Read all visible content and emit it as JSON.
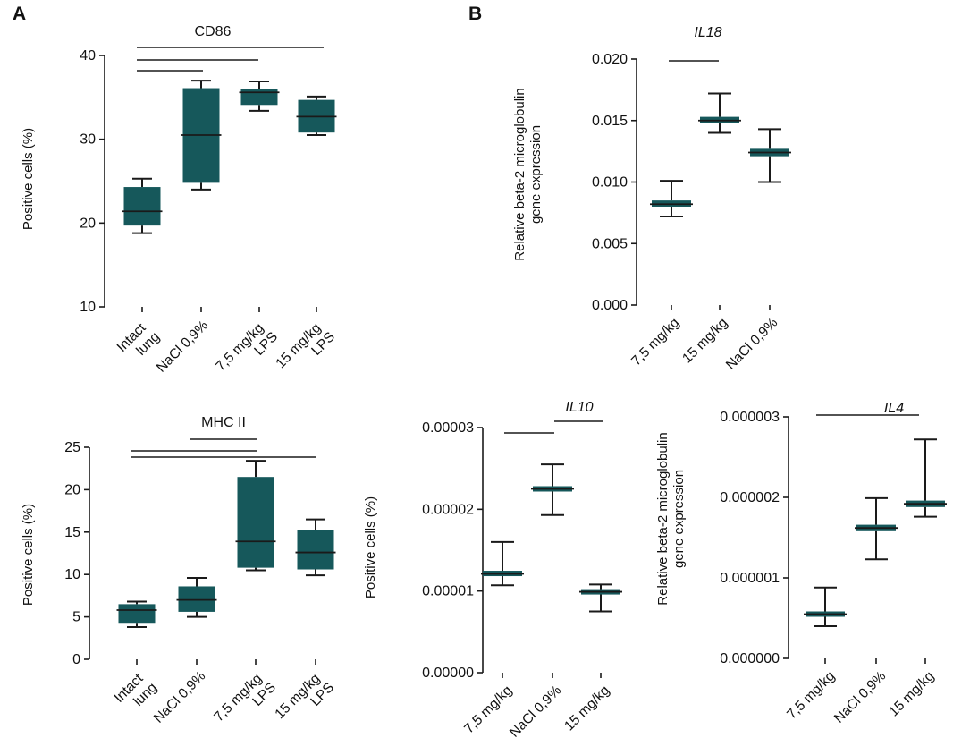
{
  "figure": {
    "panel_labels": [
      "A",
      "B"
    ]
  },
  "colors": {
    "box_fill": "#16585b",
    "line": "#1a1a1a"
  },
  "chart_data": [
    {
      "id": "cd86",
      "panel": "A",
      "type": "box",
      "title": "CD86",
      "title_italic": false,
      "ylabel": "Positive cells (%)",
      "ylim": [
        10,
        40
      ],
      "yticks": [
        "10",
        "20",
        "30",
        "40"
      ],
      "categories": [
        [
          "Intact",
          "lung"
        ],
        [
          "NaCl 0,9%"
        ],
        [
          "7,5 mg/kg",
          "LPS"
        ],
        [
          "15 mg/kg",
          "LPS"
        ]
      ],
      "boxes": [
        {
          "min": 18.8,
          "q1": 19.7,
          "median": 21.4,
          "q3": 24.3,
          "max": 25.3
        },
        {
          "min": 24.0,
          "q1": 24.8,
          "median": 30.5,
          "q3": 36.1,
          "max": 37.0
        },
        {
          "min": 33.4,
          "q1": 34.1,
          "median": 35.6,
          "q3": 36.0,
          "max": 36.9
        },
        {
          "min": 30.5,
          "q1": 30.8,
          "median": 32.7,
          "q3": 34.7,
          "max": 35.1
        }
      ],
      "comparisons": [
        [
          0,
          1
        ],
        [
          0,
          2
        ],
        [
          0,
          3
        ]
      ]
    },
    {
      "id": "mhc2",
      "panel": "A",
      "type": "box",
      "title": "MHC II",
      "title_italic": false,
      "ylabel": "Positive cells (%)",
      "ylim": [
        0,
        25
      ],
      "yticks": [
        "0",
        "5",
        "10",
        "15",
        "20",
        "25"
      ],
      "categories": [
        [
          "Intact",
          "lung"
        ],
        [
          "NaCl 0,9%"
        ],
        [
          "7,5 mg/kg",
          "LPS"
        ],
        [
          "15 mg/kg",
          "LPS"
        ]
      ],
      "boxes": [
        {
          "min": 3.8,
          "q1": 4.3,
          "median": 5.8,
          "q3": 6.5,
          "max": 6.8
        },
        {
          "min": 5.0,
          "q1": 5.6,
          "median": 7.0,
          "q3": 8.6,
          "max": 9.6
        },
        {
          "min": 10.5,
          "q1": 10.8,
          "median": 13.9,
          "q3": 21.5,
          "max": 23.4
        },
        {
          "min": 9.9,
          "q1": 10.6,
          "median": 12.6,
          "q3": 15.2,
          "max": 16.5
        }
      ],
      "comparisons": [
        [
          1,
          2
        ],
        [
          0,
          2
        ],
        [
          0,
          3
        ]
      ]
    },
    {
      "id": "il18",
      "panel": "B",
      "type": "box",
      "title": "IL18",
      "title_italic": true,
      "ylabel": [
        "Relative beta-2 microglobulin",
        "gene expression"
      ],
      "ylim": [
        0,
        0.02
      ],
      "yticks": [
        "0.000",
        "0.005",
        "0.010",
        "0.015",
        "0.020"
      ],
      "categories": [
        [
          "7,5 mg/kg"
        ],
        [
          "15 mg/kg"
        ],
        [
          "NaCl 0,9%"
        ]
      ],
      "boxes": [
        {
          "min": 0.0072,
          "q1": 0.008,
          "median": 0.0082,
          "q3": 0.0085,
          "max": 0.0101
        },
        {
          "min": 0.014,
          "q1": 0.0148,
          "median": 0.015,
          "q3": 0.0153,
          "max": 0.0172
        },
        {
          "min": 0.01,
          "q1": 0.0121,
          "median": 0.0124,
          "q3": 0.0127,
          "max": 0.0143
        }
      ],
      "comparisons": [
        [
          0,
          1
        ]
      ]
    },
    {
      "id": "il10",
      "panel": "B",
      "type": "box",
      "title": "IL10",
      "title_italic": true,
      "ylabel": "Positive cells (%)",
      "ylim": [
        0,
        3e-05
      ],
      "yticks": [
        "0.00000",
        "0.00001",
        "0.00002",
        "0.00003"
      ],
      "categories": [
        [
          "7,5 mg/kg"
        ],
        [
          "NaCl 0,9%"
        ],
        [
          "15 mg/kg"
        ]
      ],
      "boxes": [
        {
          "min": 1.07e-05,
          "q1": 1.19e-05,
          "median": 1.21e-05,
          "q3": 1.24e-05,
          "max": 1.6e-05
        },
        {
          "min": 1.93e-05,
          "q1": 2.22e-05,
          "median": 2.25e-05,
          "q3": 2.28e-05,
          "max": 2.55e-05
        },
        {
          "min": 7.5e-06,
          "q1": 9.6e-06,
          "median": 9.9e-06,
          "q3": 1.02e-05,
          "max": 1.08e-05
        }
      ],
      "comparisons": [
        [
          0,
          1
        ],
        [
          1,
          2
        ]
      ]
    },
    {
      "id": "il4",
      "panel": "B",
      "type": "box",
      "title": "IL4",
      "title_italic": true,
      "ylabel": [
        "Relative beta-2 microglobulin",
        "gene expression"
      ],
      "ylim": [
        0,
        3e-06
      ],
      "yticks": [
        "0.000000",
        "0.000001",
        "0.000002",
        "0.000003"
      ],
      "categories": [
        [
          "7,5 mg/kg"
        ],
        [
          "NaCl 0,9%"
        ],
        [
          "15 mg/kg"
        ]
      ],
      "boxes": [
        {
          "min": 4e-07,
          "q1": 5.2e-07,
          "median": 5.5e-07,
          "q3": 5.8e-07,
          "max": 8.8e-07
        },
        {
          "min": 1.23e-06,
          "q1": 1.58e-06,
          "median": 1.62e-06,
          "q3": 1.66e-06,
          "max": 1.99e-06
        },
        {
          "min": 1.76e-06,
          "q1": 1.88e-06,
          "median": 1.92e-06,
          "q3": 1.96e-06,
          "max": 2.72e-06
        }
      ],
      "comparisons": [
        [
          0,
          2
        ]
      ]
    }
  ]
}
